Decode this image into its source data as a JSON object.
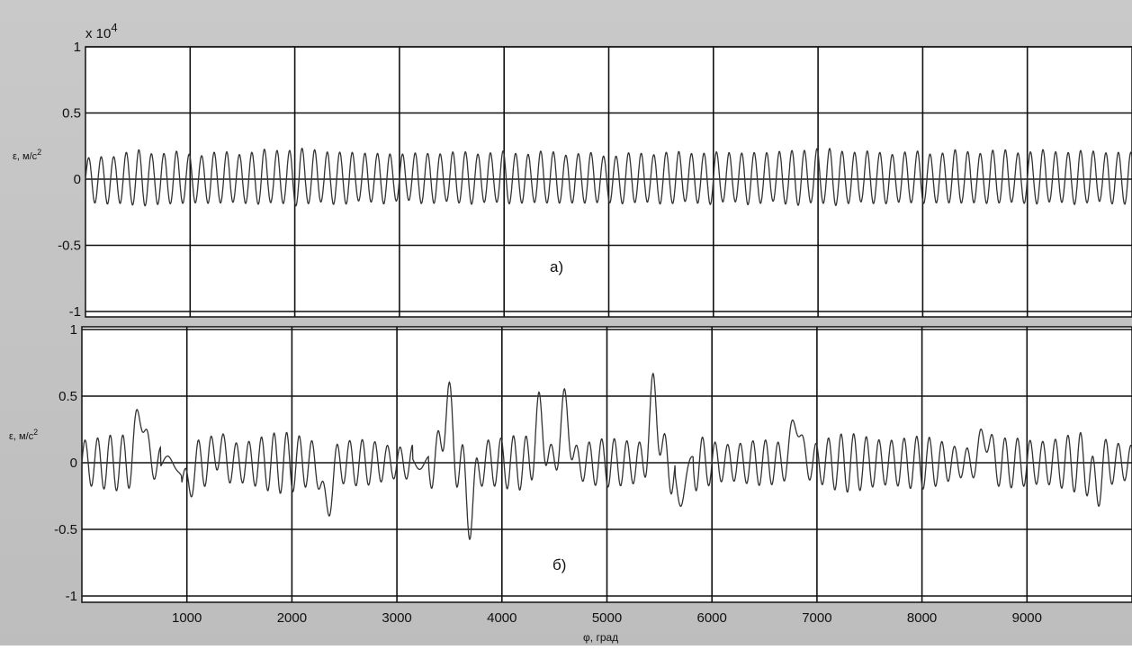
{
  "chart_data": [
    {
      "type": "line",
      "panel_label": "а)",
      "ylabel": "ε, м/с",
      "ylabel_sup": "2",
      "y_multiplier": "x 10",
      "y_multiplier_exp": "4",
      "xlim": [
        0,
        10000
      ],
      "ylim": [
        -1,
        1
      ],
      "yticks": [
        1,
        0.5,
        0,
        -0.5,
        -1
      ],
      "ytick_labels": [
        "1",
        "0.5",
        "0",
        "-0.5",
        "-1"
      ],
      "xticks": [
        1000,
        2000,
        3000,
        4000,
        5000,
        6000,
        7000,
        8000,
        9000
      ],
      "grid": true,
      "series": [
        {
          "x": [
            0,
            500,
            1000,
            1500,
            2000,
            2500,
            3000,
            3500,
            4000,
            4500,
            5000,
            5500,
            6000,
            6500,
            7000,
            7500,
            8000,
            8500,
            9000,
            9500,
            10000
          ],
          "y_envelope_max": [
            0.15,
            0.21,
            0.19,
            0.2,
            0.23,
            0.2,
            0.19,
            0.2,
            0.2,
            0.2,
            0.18,
            0.2,
            0.2,
            0.2,
            0.23,
            0.2,
            0.2,
            0.21,
            0.21,
            0.21,
            0.2
          ],
          "y_envelope_min": [
            -0.17,
            -0.2,
            -0.18,
            -0.18,
            -0.19,
            -0.18,
            -0.17,
            -0.18,
            -0.18,
            -0.18,
            -0.18,
            -0.18,
            -0.18,
            -0.18,
            -0.19,
            -0.18,
            -0.18,
            -0.18,
            -0.18,
            -0.18,
            -0.18
          ],
          "oscillation_period": 120
        }
      ]
    },
    {
      "type": "line",
      "panel_label": "б)",
      "ylabel": "ε, м/с",
      "ylabel_sup": "2",
      "xlabel": "φ, град",
      "xlim": [
        0,
        10000
      ],
      "ylim": [
        -1,
        1
      ],
      "yticks": [
        1,
        0.5,
        0,
        -0.5,
        -1
      ],
      "ytick_labels": [
        "1",
        "0.5",
        "0",
        "-0.5",
        "-1"
      ],
      "xticks": [
        1000,
        2000,
        3000,
        4000,
        5000,
        6000,
        7000,
        8000,
        9000
      ],
      "xtick_labels": [
        "1000",
        "2000",
        "3000",
        "4000",
        "5000",
        "6000",
        "7000",
        "8000",
        "9000"
      ],
      "grid": true,
      "series": [
        {
          "baseline_amplitude": 0.2,
          "oscillation_period": 120,
          "peaks": [
            {
              "x": 560,
              "y": 0.6
            },
            {
              "x": 1000,
              "y": -0.38
            },
            {
              "x": 1300,
              "y": 0.3
            },
            {
              "x": 2330,
              "y": -0.55
            },
            {
              "x": 3480,
              "y": 0.66
            },
            {
              "x": 3700,
              "y": -0.58
            },
            {
              "x": 4360,
              "y": 0.55
            },
            {
              "x": 4600,
              "y": 0.63
            },
            {
              "x": 5450,
              "y": 0.72
            },
            {
              "x": 5700,
              "y": -0.46
            },
            {
              "x": 6800,
              "y": 0.53
            },
            {
              "x": 8600,
              "y": 0.42
            },
            {
              "x": 9650,
              "y": -0.38
            }
          ],
          "quiet_regions": [
            [
              750,
              950
            ],
            [
              3150,
              3300
            ],
            [
              5650,
              5820
            ]
          ]
        }
      ]
    }
  ]
}
